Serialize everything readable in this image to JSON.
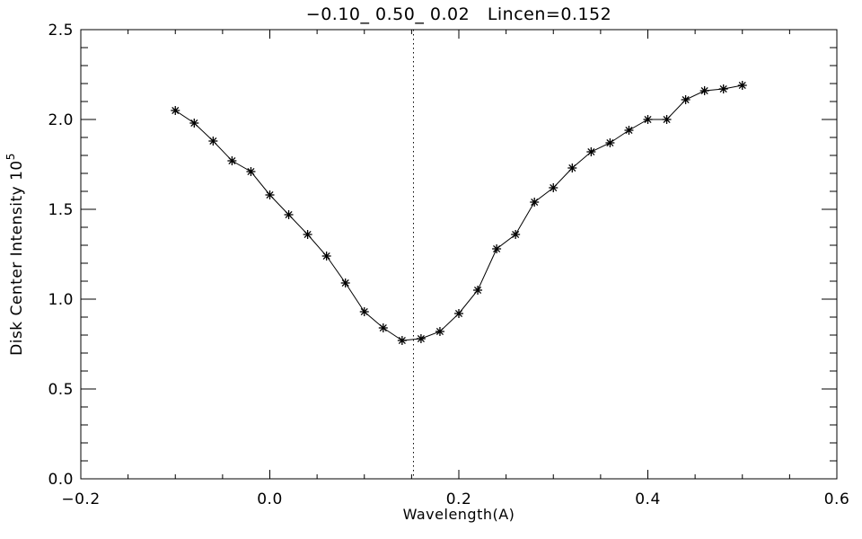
{
  "chart_data": {
    "type": "line",
    "title": "−0.10_ 0.50_ 0.02   Lincen=0.152",
    "xlabel": "Wavelength(A)",
    "ylabel_base": "Disk Center Intensity 10",
    "ylabel_exponent": "5",
    "background": "#ffffff",
    "foreground": "#000000",
    "grid": false,
    "legend": "none",
    "xlim": [
      -0.2,
      0.6
    ],
    "ylim": [
      0.0,
      2.5
    ],
    "xticks": {
      "major": [
        -0.2,
        0.0,
        0.2,
        0.4,
        0.6
      ],
      "labels": [
        "−0.2",
        "0.0",
        "0.2",
        "0.4",
        "0.6"
      ],
      "minor_step": 0.05
    },
    "yticks": {
      "major": [
        0.0,
        0.5,
        1.0,
        1.5,
        2.0,
        2.5
      ],
      "labels": [
        "0.0",
        "0.5",
        "1.0",
        "1.5",
        "2.0",
        "2.5"
      ],
      "minor_step": 0.1
    },
    "vline": {
      "x": 0.152,
      "style": "dotted",
      "color": "#000000",
      "label": "line-center"
    },
    "series": [
      {
        "name": "disk-center-intensity",
        "marker": "asterisk",
        "color": "#000000",
        "x": [
          -0.1,
          -0.08,
          -0.06,
          -0.04,
          -0.02,
          0.0,
          0.02,
          0.04,
          0.06,
          0.08,
          0.1,
          0.12,
          0.14,
          0.16,
          0.18,
          0.2,
          0.22,
          0.24,
          0.26,
          0.28,
          0.3,
          0.32,
          0.34,
          0.36,
          0.38,
          0.4,
          0.42,
          0.44,
          0.46,
          0.48,
          0.5
        ],
        "y": [
          2.05,
          1.98,
          1.88,
          1.77,
          1.71,
          1.58,
          1.47,
          1.36,
          1.24,
          1.09,
          0.93,
          0.84,
          0.77,
          0.78,
          0.82,
          0.92,
          1.05,
          1.28,
          1.36,
          1.54,
          1.62,
          1.73,
          1.82,
          1.87,
          1.94,
          2.0,
          2.0,
          2.11,
          2.16,
          2.17,
          2.19
        ]
      }
    ]
  }
}
